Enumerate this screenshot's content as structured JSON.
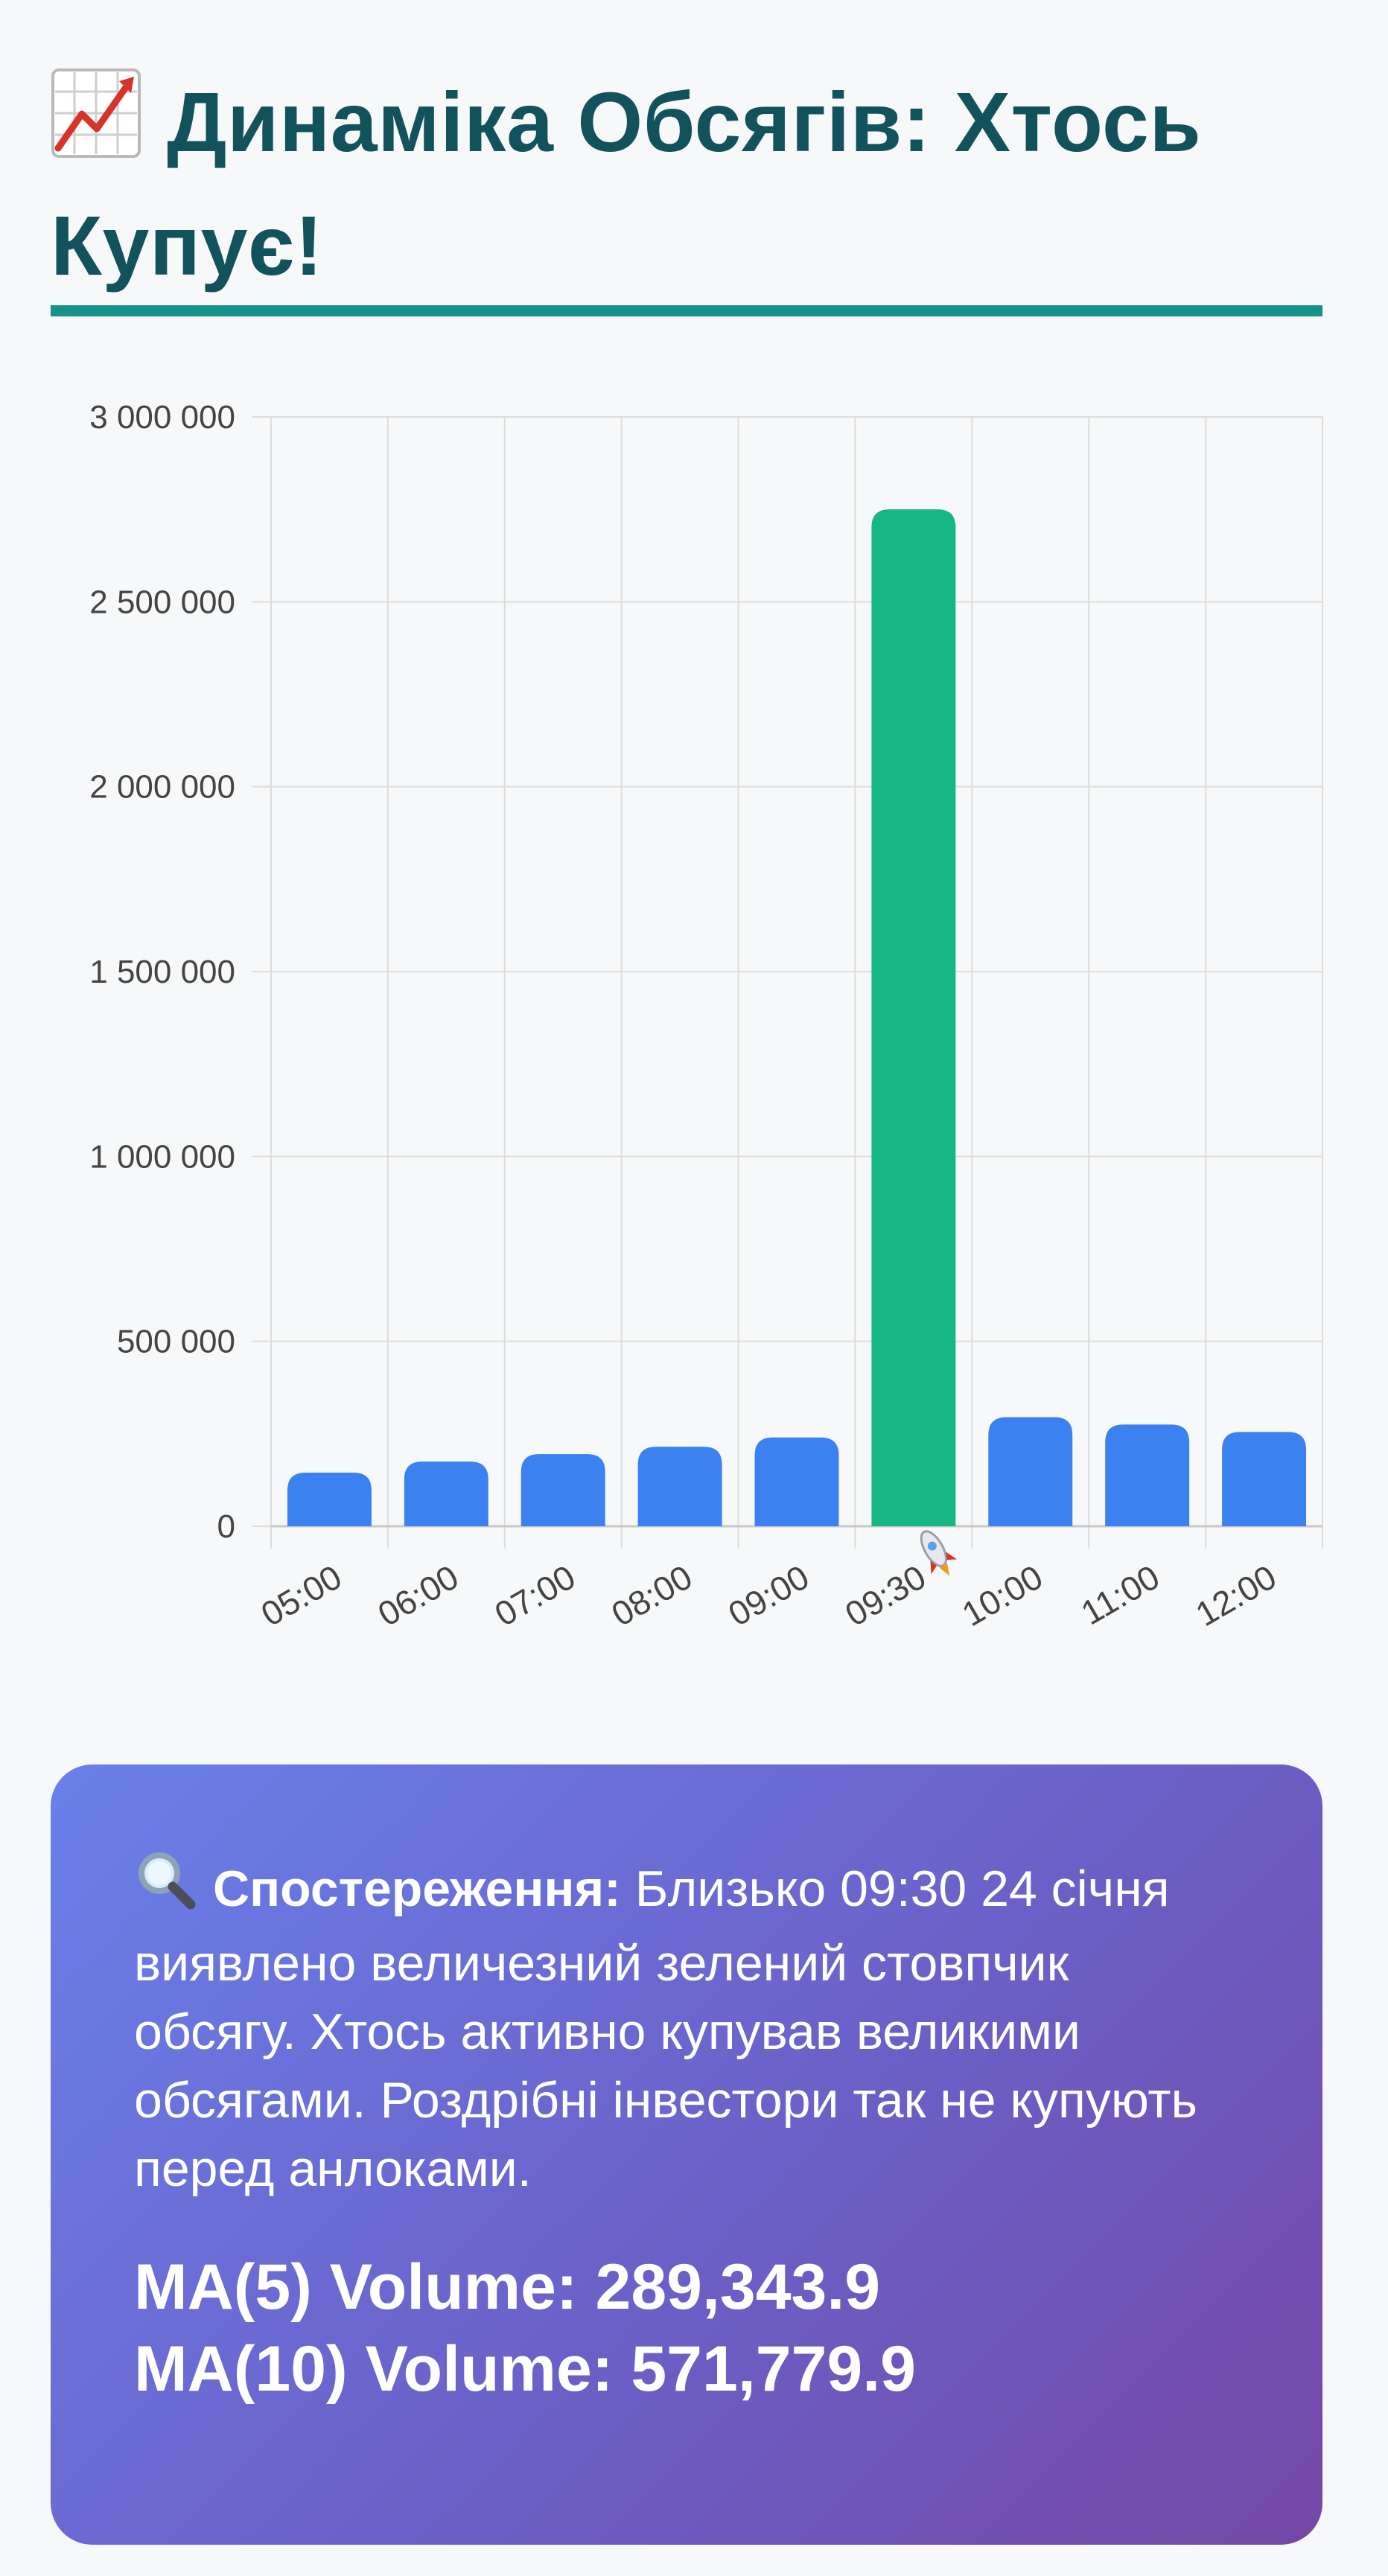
{
  "header": {
    "icon": "chart-increasing-icon",
    "title_line1": "Динаміка Обсягів: Хтось",
    "title_line2": "Купує!"
  },
  "colors": {
    "title": "#12525c",
    "accent_rule": "#14938a",
    "bar_normal": "#3b82f0",
    "bar_highlight": "#17b784",
    "grid": "#dcdcdc",
    "card_gradient_start": "#6a80ea",
    "card_gradient_end": "#7547a6"
  },
  "chart_data": {
    "type": "bar",
    "categories": [
      "05:00",
      "06:00",
      "07:00",
      "08:00",
      "09:00",
      "09:30",
      "10:00",
      "11:00",
      "12:00"
    ],
    "highlight_category": "09:30",
    "highlight_icon": "rocket-icon",
    "values": [
      145000,
      175000,
      195000,
      215000,
      240000,
      2750000,
      295000,
      275000,
      255000
    ],
    "ylim": [
      0,
      3000000
    ],
    "yticks": [
      {
        "value": 0,
        "label": "0"
      },
      {
        "value": 500000,
        "label": "500 000"
      },
      {
        "value": 1000000,
        "label": "1 000 000"
      },
      {
        "value": 1500000,
        "label": "1 500 000"
      },
      {
        "value": 2000000,
        "label": "2 000 000"
      },
      {
        "value": 2500000,
        "label": "2 500 000"
      },
      {
        "value": 3000000,
        "label": "3 000 000"
      }
    ],
    "title": "",
    "xlabel": "",
    "ylabel": "",
    "grid": true,
    "legend": "none"
  },
  "observation": {
    "icon": "magnifier-icon",
    "lead": "Спостереження:",
    "text": "Близько 09:30 24 січня виявлено величезний зелений стовпчик обсягу. Хтось активно купував великими обсягами. Роздрібні інвестори так не купують перед анлоками.",
    "ma5": "MA(5) Volume: 289,343.9",
    "ma10": "MA(10) Volume: 571,779.9"
  }
}
